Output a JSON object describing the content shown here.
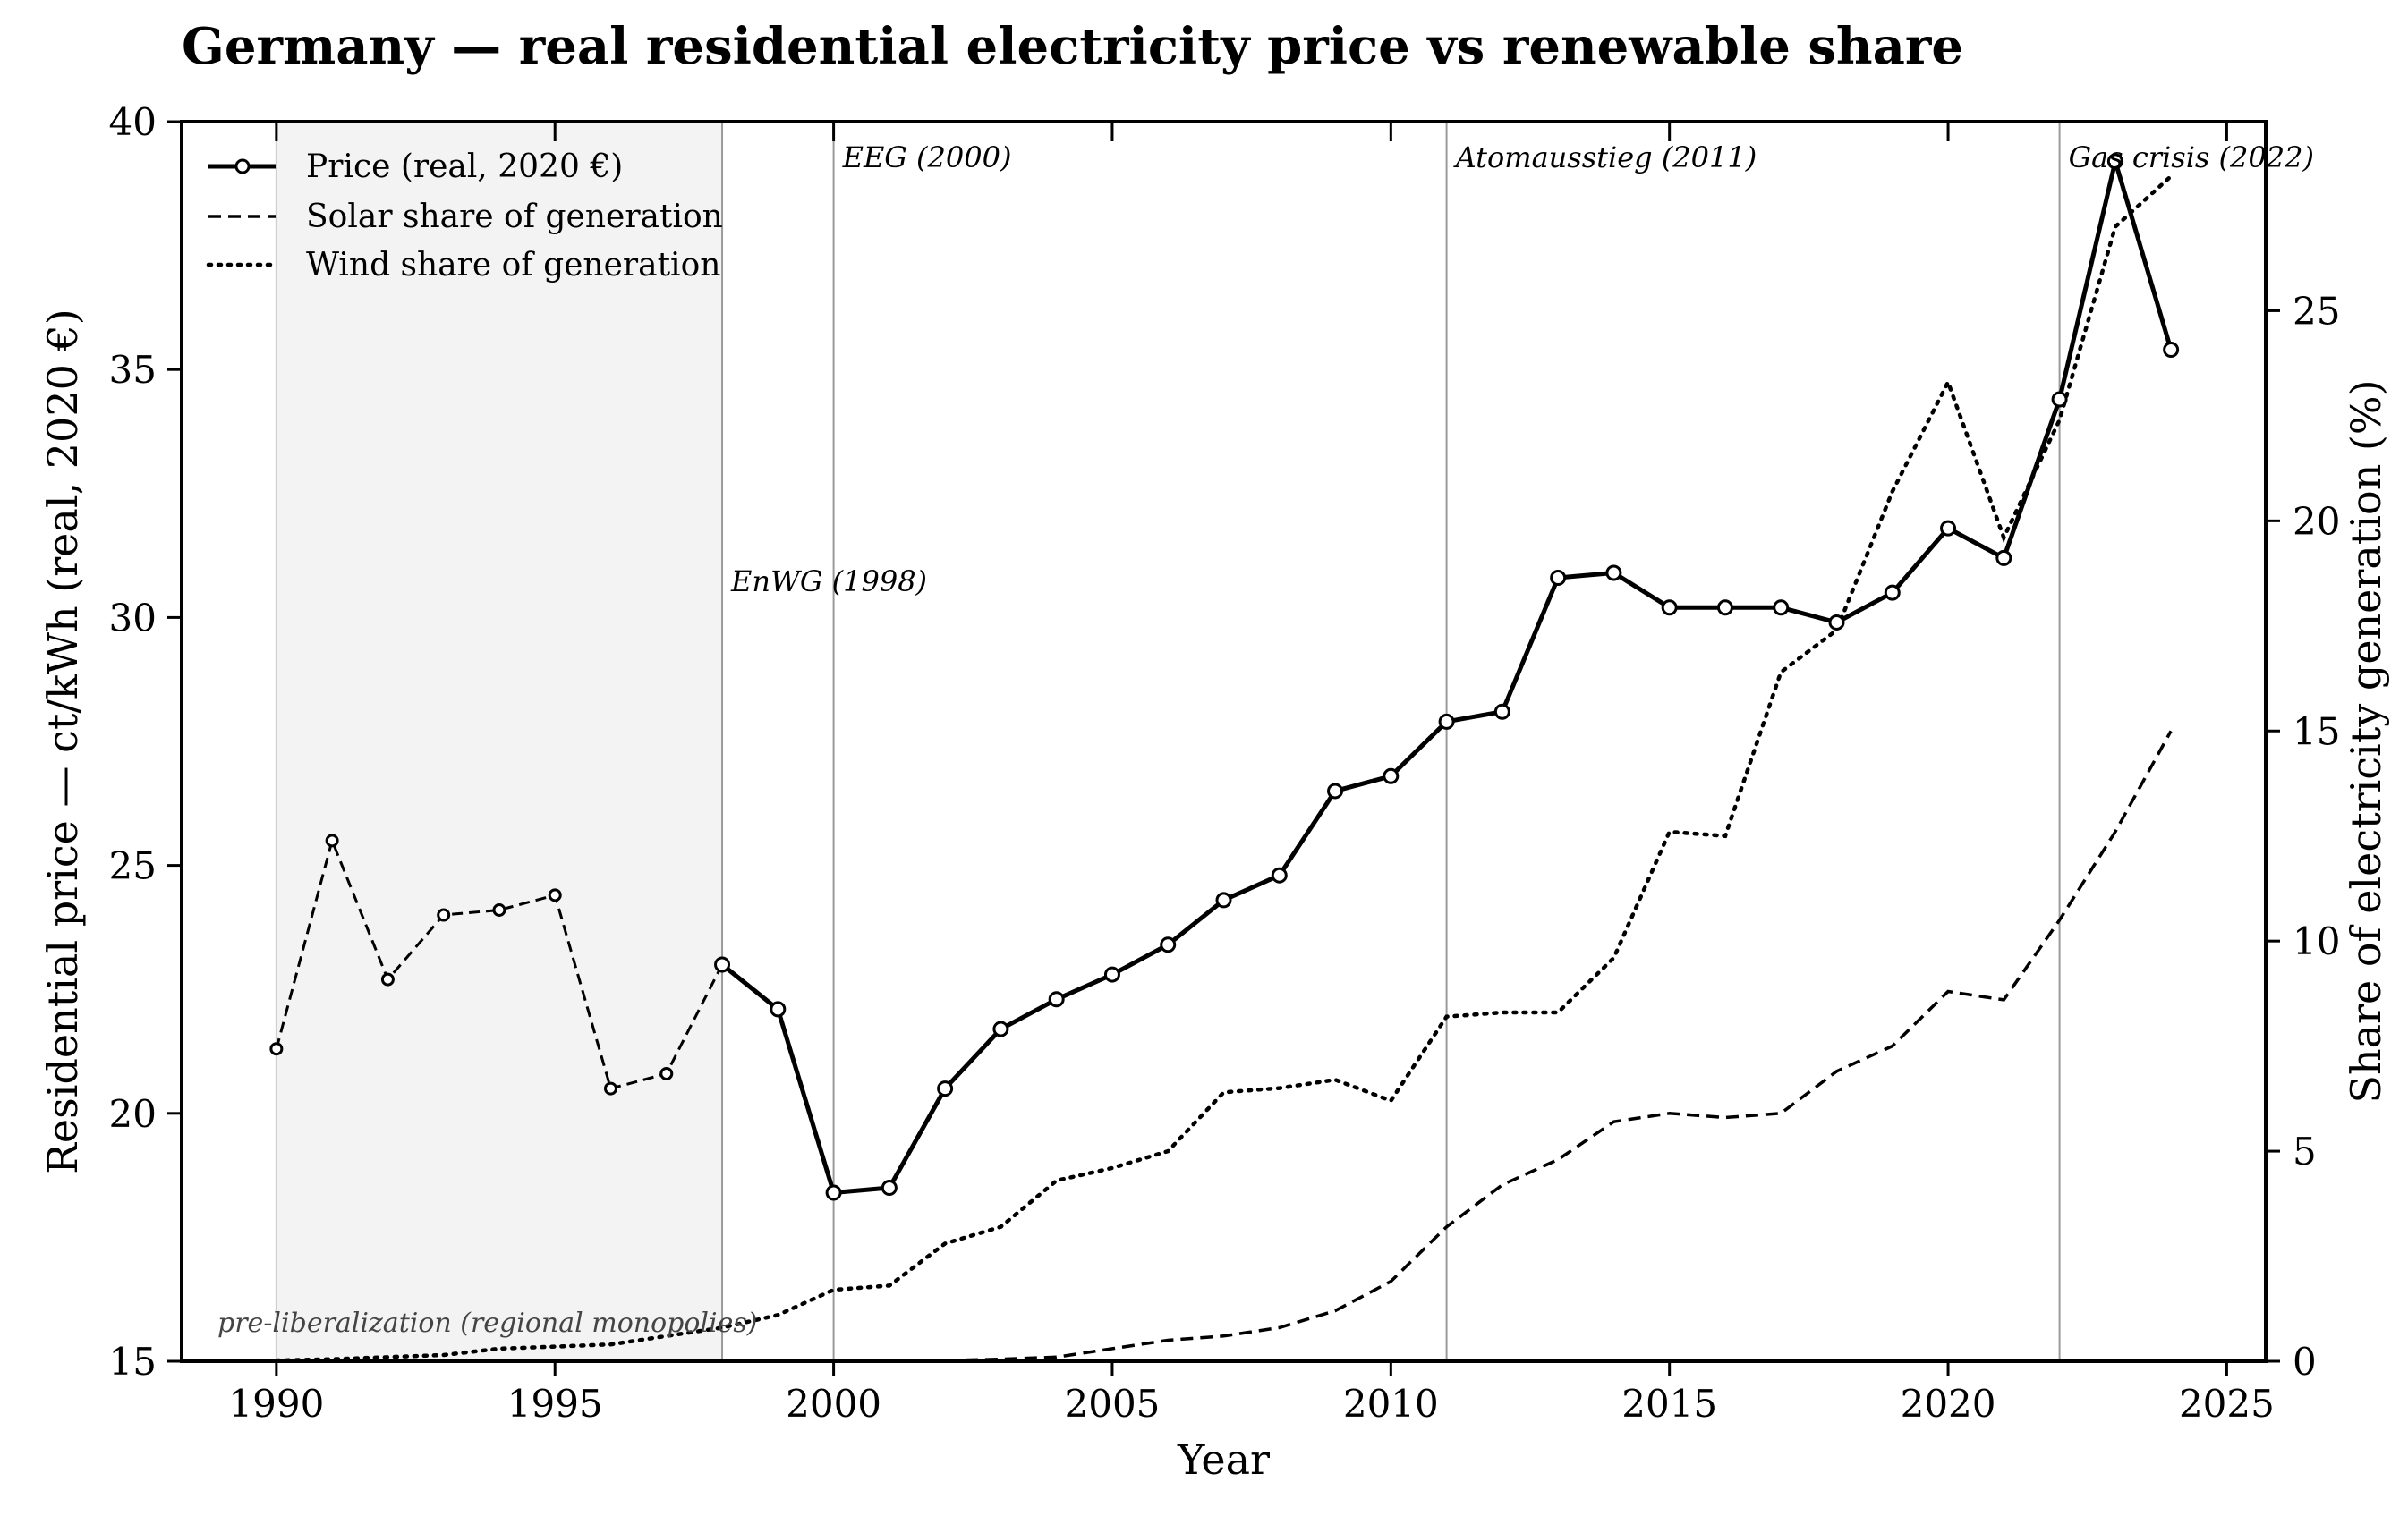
{
  "chart_data": {
    "type": "line",
    "title": "Germany — real residential electricity price vs renewable share",
    "xlabel": "Year",
    "ylabel_left": "Residential price — ct/kWh (real, 2020 €)",
    "ylabel_right": "Share of electricity generation (%)",
    "xlim": [
      1988.3,
      2025.7
    ],
    "ylim_left": [
      15,
      40
    ],
    "ylim_right": [
      0,
      29.5
    ],
    "x_ticks": [
      "1990",
      "1995",
      "2000",
      "2005",
      "2010",
      "2015",
      "2020",
      "2025"
    ],
    "y_ticks_left": [
      "15",
      "20",
      "25",
      "30",
      "35",
      "40"
    ],
    "y_ticks_right": [
      "0",
      "5",
      "10",
      "15",
      "20",
      "25"
    ],
    "grid": false,
    "legend_position": "top-left",
    "legend": [
      {
        "label": "Price (real, 2020 €)",
        "style": "solid-marker"
      },
      {
        "label": "Solar share of generation",
        "style": "dashed"
      },
      {
        "label": "Wind share of generation",
        "style": "dotted"
      }
    ],
    "shaded_regions": [
      {
        "x_start": 1990,
        "x_end": 1998,
        "label": "pre-liberalization (regional monopolies)"
      }
    ],
    "events": [
      {
        "year": 1998,
        "label": "EnWG (1998)"
      },
      {
        "year": 2000,
        "label": "EEG (2000)"
      },
      {
        "year": 2011,
        "label": "Atomausstieg (2011)"
      },
      {
        "year": 2022,
        "label": "Gas crisis (2022)"
      }
    ],
    "series": [
      {
        "name": "Price (real, 2020 €)",
        "axis": "left",
        "x": [
          1990,
          1991,
          1992,
          1993,
          1994,
          1995,
          1996,
          1997,
          1998,
          1999,
          2000,
          2001,
          2002,
          2003,
          2004,
          2005,
          2006,
          2007,
          2008,
          2009,
          2010,
          2011,
          2012,
          2013,
          2014,
          2015,
          2016,
          2017,
          2018,
          2019,
          2020,
          2021,
          2022,
          2023,
          2024
        ],
        "values": [
          21.3,
          25.5,
          22.7,
          24.0,
          24.1,
          24.4,
          20.5,
          20.8,
          23.0,
          22.1,
          18.4,
          18.5,
          20.5,
          21.7,
          22.3,
          22.8,
          23.4,
          24.3,
          24.8,
          26.5,
          26.8,
          27.9,
          28.1,
          30.8,
          30.9,
          30.2,
          30.2,
          30.2,
          29.9,
          30.5,
          31.8,
          31.2,
          34.4,
          39.2,
          35.4
        ],
        "dashed_before": 1998
      },
      {
        "name": "Solar share of generation",
        "axis": "right",
        "x": [
          1990,
          1991,
          1992,
          1993,
          1994,
          1995,
          1996,
          1997,
          1998,
          1999,
          2000,
          2001,
          2002,
          2003,
          2004,
          2005,
          2006,
          2007,
          2008,
          2009,
          2010,
          2011,
          2012,
          2013,
          2014,
          2015,
          2016,
          2017,
          2018,
          2019,
          2020,
          2021,
          2022,
          2023,
          2024
        ],
        "values": [
          0,
          0,
          0,
          0,
          0,
          0,
          0,
          0,
          0,
          0,
          0,
          0,
          0.02,
          0.05,
          0.1,
          0.3,
          0.5,
          0.6,
          0.8,
          1.2,
          1.9,
          3.2,
          4.2,
          4.8,
          5.7,
          5.9,
          5.8,
          5.9,
          6.9,
          7.5,
          8.8,
          8.6,
          10.5,
          12.6,
          15.0
        ]
      },
      {
        "name": "Wind share of generation",
        "axis": "right",
        "x": [
          1990,
          1991,
          1992,
          1993,
          1994,
          1995,
          1996,
          1997,
          1998,
          1999,
          2000,
          2001,
          2002,
          2003,
          2004,
          2005,
          2006,
          2007,
          2008,
          2009,
          2010,
          2011,
          2012,
          2013,
          2014,
          2015,
          2016,
          2017,
          2018,
          2019,
          2020,
          2021,
          2022,
          2023,
          2024
        ],
        "values": [
          0.02,
          0.05,
          0.1,
          0.15,
          0.3,
          0.35,
          0.4,
          0.6,
          0.8,
          1.1,
          1.7,
          1.8,
          2.8,
          3.2,
          4.3,
          4.6,
          5.0,
          6.4,
          6.5,
          6.7,
          6.2,
          8.2,
          8.3,
          8.3,
          9.6,
          12.6,
          12.5,
          16.4,
          17.4,
          20.7,
          23.3,
          19.6,
          22.4,
          27.0,
          28.2
        ]
      }
    ]
  }
}
